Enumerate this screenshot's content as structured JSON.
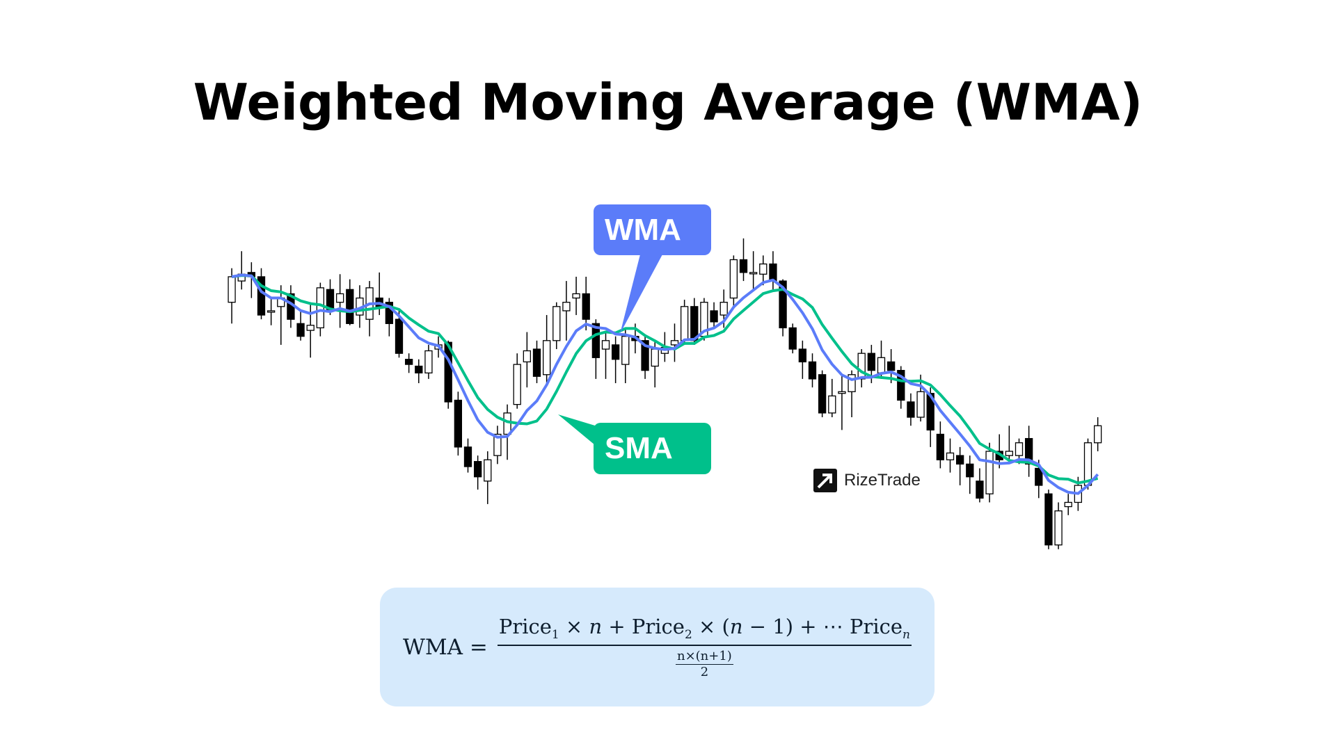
{
  "title": "Weighted Moving Average (WMA)",
  "labels": {
    "wma": "WMA",
    "sma": "SMA"
  },
  "logo": {
    "text": "RizeTrade"
  },
  "formula": {
    "lhs": "WMA =",
    "numerator": [
      "Price",
      "1",
      " × ",
      "n",
      " + Price",
      "2",
      " × (",
      "n",
      " − 1) + ⋯ Price",
      "n"
    ],
    "denominator_top": "n×(n+1)",
    "denominator_bottom": "2"
  },
  "colors": {
    "wma": "#5b7cf9",
    "sma": "#00c08b",
    "bull": "#ffffff",
    "bear": "#000000",
    "formula_bg": "#d6eafc"
  },
  "chart_data": {
    "type": "candlestick",
    "title": "Weighted Moving Average (WMA)",
    "series_names": [
      "WMA",
      "SMA"
    ],
    "candles": [
      [
        345,
        385,
        320,
        375
      ],
      [
        370,
        405,
        360,
        378
      ],
      [
        380,
        392,
        350,
        375
      ],
      [
        375,
        385,
        325,
        330
      ],
      [
        335,
        350,
        318,
        335
      ],
      [
        340,
        365,
        295,
        350
      ],
      [
        355,
        365,
        315,
        325
      ],
      [
        320,
        335,
        300,
        305
      ],
      [
        312,
        345,
        280,
        318
      ],
      [
        315,
        368,
        305,
        362
      ],
      [
        360,
        372,
        330,
        335
      ],
      [
        345,
        378,
        315,
        355
      ],
      [
        360,
        372,
        318,
        320
      ],
      [
        330,
        365,
        315,
        350
      ],
      [
        325,
        370,
        305,
        362
      ],
      [
        350,
        380,
        330,
        340
      ],
      [
        345,
        350,
        305,
        320
      ],
      [
        325,
        335,
        280,
        285
      ],
      [
        278,
        285,
        262,
        272
      ],
      [
        270,
        278,
        250,
        262
      ],
      [
        262,
        295,
        255,
        288
      ],
      [
        290,
        305,
        280,
        295
      ],
      [
        298,
        300,
        220,
        228
      ],
      [
        230,
        240,
        165,
        175
      ],
      [
        175,
        185,
        145,
        152
      ],
      [
        158,
        165,
        125,
        140
      ],
      [
        135,
        170,
        108,
        160
      ],
      [
        165,
        200,
        155,
        190
      ],
      [
        190,
        225,
        160,
        215
      ],
      [
        225,
        285,
        220,
        272
      ],
      [
        275,
        310,
        245,
        288
      ],
      [
        290,
        300,
        250,
        258
      ],
      [
        260,
        330,
        250,
        300
      ],
      [
        300,
        345,
        290,
        340
      ],
      [
        335,
        370,
        300,
        345
      ],
      [
        350,
        375,
        330,
        355
      ],
      [
        355,
        375,
        312,
        325
      ],
      [
        320,
        325,
        255,
        280
      ],
      [
        290,
        310,
        255,
        300
      ],
      [
        295,
        305,
        250,
        278
      ],
      [
        272,
        315,
        250,
        305
      ],
      [
        305,
        320,
        285,
        300
      ],
      [
        300,
        305,
        255,
        265
      ],
      [
        270,
        300,
        245,
        290
      ],
      [
        285,
        310,
        275,
        292
      ],
      [
        295,
        320,
        275,
        300
      ],
      [
        300,
        348,
        295,
        340
      ],
      [
        340,
        350,
        295,
        300
      ],
      [
        305,
        350,
        300,
        345
      ],
      [
        335,
        345,
        315,
        322
      ],
      [
        330,
        360,
        315,
        345
      ],
      [
        350,
        400,
        340,
        395
      ],
      [
        395,
        420,
        370,
        380
      ],
      [
        380,
        405,
        360,
        380
      ],
      [
        378,
        400,
        365,
        390
      ],
      [
        390,
        405,
        360,
        370
      ],
      [
        370,
        372,
        305,
        315
      ],
      [
        315,
        320,
        285,
        290
      ],
      [
        290,
        300,
        255,
        275
      ],
      [
        275,
        285,
        245,
        255
      ],
      [
        260,
        265,
        210,
        215
      ],
      [
        215,
        255,
        210,
        235
      ],
      [
        238,
        260,
        195,
        240
      ],
      [
        240,
        265,
        210,
        260
      ],
      [
        255,
        290,
        245,
        285
      ],
      [
        285,
        295,
        250,
        265
      ],
      [
        262,
        300,
        255,
        280
      ],
      [
        275,
        290,
        250,
        265
      ],
      [
        265,
        270,
        220,
        230
      ],
      [
        228,
        238,
        200,
        210
      ],
      [
        210,
        260,
        205,
        240
      ],
      [
        238,
        245,
        175,
        195
      ],
      [
        190,
        205,
        150,
        160
      ],
      [
        160,
        185,
        145,
        168
      ],
      [
        165,
        175,
        130,
        155
      ],
      [
        155,
        165,
        120,
        140
      ],
      [
        135,
        150,
        110,
        115
      ],
      [
        120,
        180,
        110,
        170
      ],
      [
        170,
        190,
        150,
        160
      ],
      [
        165,
        200,
        155,
        170
      ],
      [
        165,
        185,
        155,
        180
      ],
      [
        185,
        200,
        140,
        155
      ],
      [
        150,
        160,
        115,
        130
      ],
      [
        120,
        125,
        55,
        60
      ],
      [
        60,
        110,
        55,
        100
      ],
      [
        105,
        120,
        95,
        110
      ],
      [
        110,
        140,
        100,
        130
      ],
      [
        130,
        185,
        125,
        180
      ],
      [
        180,
        210,
        170,
        200
      ]
    ],
    "price_order": "open,high,low,close"
  }
}
